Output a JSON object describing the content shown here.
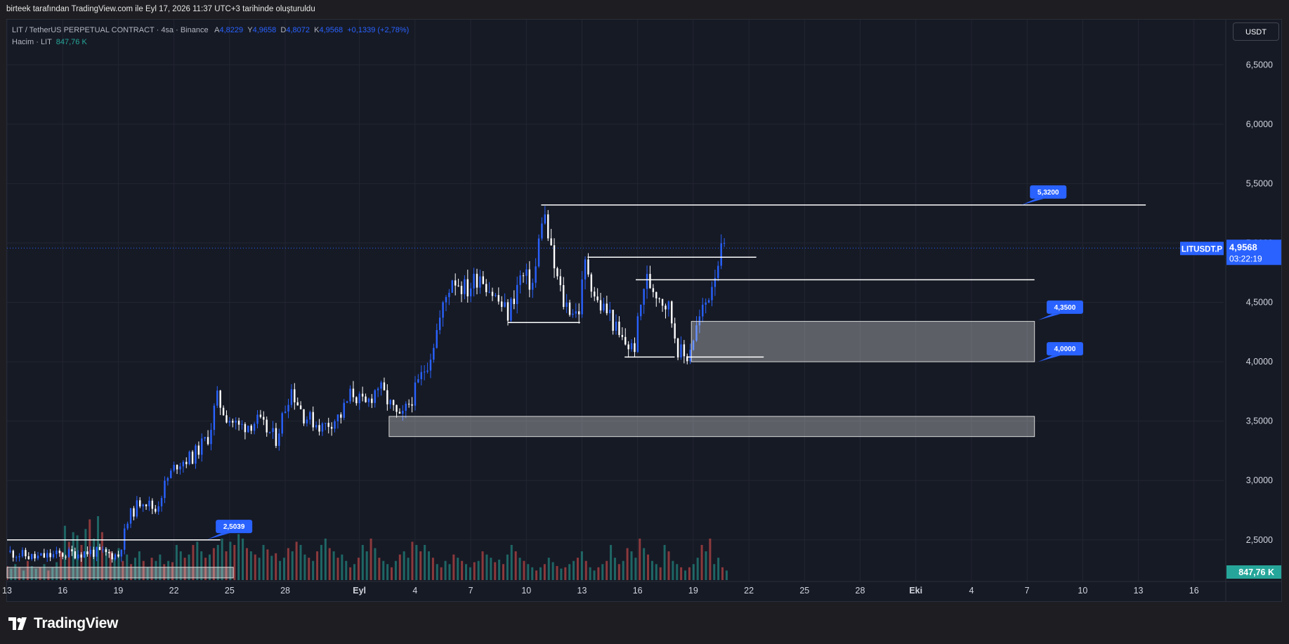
{
  "header": {
    "attribution": "birteek tarafından TradingView.com ile Eyl 17, 2026 11:37 UTC+3 tarihinde oluşturuldu"
  },
  "legend": {
    "symbol_line": "LIT / TetherUS PERPETUAL CONTRACT · 4sa · Binance",
    "open_label": "A",
    "open": "4,8229",
    "high_label": "Y",
    "high": "4,9658",
    "low_label": "D",
    "low": "4,8072",
    "close_label": "K",
    "close": "4,9568",
    "change": "+0,1339 (+2,78%)",
    "volume_label": "Hacim · LIT",
    "volume_value": "847,76 K"
  },
  "currency_button": "USDT",
  "price_tag": {
    "symbol": "LITUSDT.P",
    "price": "4,9568",
    "countdown": "03:22:19"
  },
  "volume_tag": "847,76 K",
  "branding": "TradingView",
  "colors": {
    "up": "#2962ff",
    "down": "#ffffff",
    "vol_up": "#26a69a",
    "vol_down": "#ef5350",
    "label_blue": "#2962ff",
    "background": "#161a25"
  },
  "chart_data": {
    "type": "candlestick",
    "title": "LIT / TetherUS PERPETUAL CONTRACT · 4sa · Binance",
    "y_axis": {
      "ticks": [
        "6,5000",
        "6,0000",
        "5,5000",
        "5,0000",
        "4,5000",
        "4,0000",
        "3,5000",
        "3,0000",
        "2,5000"
      ],
      "tick_values": [
        6.5,
        6.0,
        5.5,
        5.0,
        4.5,
        4.0,
        3.5,
        3.0,
        2.5
      ],
      "range": [
        2.15,
        6.88
      ]
    },
    "x_axis": {
      "ticks": [
        "13",
        "16",
        "19",
        "22",
        "25",
        "28",
        "Eyl",
        "4",
        "7",
        "10",
        "13",
        "16",
        "19",
        "22",
        "25",
        "28",
        "Eki",
        "4",
        "7",
        "10",
        "13",
        "16"
      ],
      "tick_days": [
        13,
        16,
        19,
        22,
        25,
        28,
        32,
        35,
        38,
        41,
        44,
        47,
        50,
        53,
        56,
        59,
        62,
        65,
        68,
        71,
        74,
        77
      ],
      "range_days": [
        13,
        78.6
      ]
    },
    "price_path": [
      [
        13.0,
        2.4
      ],
      [
        14.5,
        2.35
      ],
      [
        16.0,
        2.38
      ],
      [
        17.5,
        2.4
      ],
      [
        19.0,
        2.37
      ],
      [
        19.6,
        2.7
      ],
      [
        20.3,
        2.85
      ],
      [
        21.0,
        2.75
      ],
      [
        21.6,
        3.0
      ],
      [
        22.2,
        3.15
      ],
      [
        23.0,
        3.2
      ],
      [
        23.9,
        3.38
      ],
      [
        24.3,
        3.7
      ],
      [
        24.8,
        3.55
      ],
      [
        25.5,
        3.45
      ],
      [
        26.5,
        3.5
      ],
      [
        27.5,
        3.35
      ],
      [
        28.3,
        3.78
      ],
      [
        29.0,
        3.55
      ],
      [
        30.0,
        3.45
      ],
      [
        31.0,
        3.55
      ],
      [
        31.6,
        3.75
      ],
      [
        32.3,
        3.62
      ],
      [
        33.0,
        3.8
      ],
      [
        33.6,
        3.65
      ],
      [
        34.2,
        3.5
      ],
      [
        35.0,
        3.75
      ],
      [
        35.8,
        4.05
      ],
      [
        36.5,
        4.45
      ],
      [
        37.0,
        4.72
      ],
      [
        37.8,
        4.6
      ],
      [
        38.5,
        4.75
      ],
      [
        39.3,
        4.55
      ],
      [
        40.0,
        4.4
      ],
      [
        40.7,
        4.72
      ],
      [
        41.4,
        4.65
      ],
      [
        41.9,
        5.3
      ],
      [
        42.4,
        4.85
      ],
      [
        43.0,
        4.5
      ],
      [
        43.8,
        4.4
      ],
      [
        44.2,
        4.85
      ],
      [
        44.8,
        4.5
      ],
      [
        45.5,
        4.4
      ],
      [
        46.0,
        4.2
      ],
      [
        46.8,
        4.1
      ],
      [
        47.4,
        4.7
      ],
      [
        48.0,
        4.6
      ],
      [
        48.7,
        4.45
      ],
      [
        49.2,
        4.1
      ],
      [
        49.6,
        4.02
      ],
      [
        50.2,
        4.3
      ],
      [
        50.8,
        4.55
      ],
      [
        51.3,
        4.85
      ],
      [
        51.7,
        4.96
      ]
    ],
    "volume": {
      "values": [
        0.22,
        0.18,
        0.25,
        0.2,
        0.15,
        0.3,
        0.22,
        0.18,
        0.2,
        0.25,
        0.15,
        0.2,
        0.28,
        0.45,
        0.85,
        0.6,
        0.75,
        0.7,
        0.55,
        0.8,
        0.95,
        0.65,
        1.0,
        0.75,
        0.5,
        0.45,
        0.35,
        0.5,
        0.3,
        0.4,
        0.25,
        0.35,
        0.45,
        0.3,
        0.2,
        0.35,
        0.3,
        0.4,
        0.25,
        0.3,
        0.28,
        0.55,
        0.45,
        0.35,
        0.4,
        0.55,
        0.6,
        0.45,
        0.35,
        0.4,
        0.5,
        0.55,
        0.65,
        0.45,
        0.6,
        0.55,
        0.72,
        0.65,
        0.5,
        0.45,
        0.4,
        0.35,
        0.55,
        0.48,
        0.38,
        0.42,
        0.3,
        0.35,
        0.5,
        0.45,
        0.6,
        0.55,
        0.4,
        0.35,
        0.3,
        0.45,
        0.55,
        0.65,
        0.5,
        0.45,
        0.35,
        0.4,
        0.3,
        0.2,
        0.25,
        0.35,
        0.55,
        0.45,
        0.65,
        0.5,
        0.35,
        0.3,
        0.25,
        0.2,
        0.3,
        0.4,
        0.45,
        0.35,
        0.6,
        0.55,
        0.45,
        0.55,
        0.45,
        0.35,
        0.25,
        0.2,
        0.3,
        0.25,
        0.4,
        0.35,
        0.3,
        0.25,
        0.2,
        0.28,
        0.3,
        0.45,
        0.4,
        0.35,
        0.28,
        0.32,
        0.25,
        0.4,
        0.55,
        0.45,
        0.35,
        0.3,
        0.25,
        0.2,
        0.15,
        0.2,
        0.25,
        0.35,
        0.28,
        0.22,
        0.18,
        0.2,
        0.25,
        0.3,
        0.35,
        0.45,
        0.3,
        0.2,
        0.15,
        0.2,
        0.25,
        0.3,
        0.55,
        0.35,
        0.25,
        0.3,
        0.5,
        0.45,
        0.35,
        0.65,
        0.5,
        0.4,
        0.3,
        0.25,
        0.2,
        0.55,
        0.45,
        0.3,
        0.25,
        0.2,
        0.15,
        0.2,
        0.25,
        0.35,
        0.55,
        0.45,
        0.65,
        0.25,
        0.35,
        0.2,
        0.15
      ],
      "max_label": "847,76 K"
    },
    "horizontal_lines": [
      {
        "y": 5.32,
        "from_day": 41.8,
        "to_day": 74.4
      },
      {
        "y": 4.88,
        "from_day": 44.3,
        "to_day": 53.4
      },
      {
        "y": 4.69,
        "from_day": 46.9,
        "to_day": 68.4
      },
      {
        "y": 4.33,
        "from_day": 40.0,
        "to_day": 43.9
      },
      {
        "y": 4.04,
        "from_day": 46.3,
        "to_day": 49.0
      },
      {
        "y": 4.04,
        "from_day": 49.7,
        "to_day": 53.8
      },
      {
        "y": 2.5,
        "from_day": 13.0,
        "to_day": 24.5
      }
    ],
    "zones": [
      {
        "y_top": 4.34,
        "y_bottom": 4.0,
        "from_day": 49.9,
        "to_day": 68.4
      },
      {
        "y_top": 3.54,
        "y_bottom": 3.37,
        "from_day": 33.6,
        "to_day": 68.4
      },
      {
        "y_top": 2.27,
        "y_bottom": 2.18,
        "from_day": 13.0,
        "to_day": 25.2
      }
    ],
    "price_labels": [
      {
        "text": "5,3200",
        "value": 5.32,
        "day": 67.7
      },
      {
        "text": "4,3500",
        "value": 4.35,
        "day": 68.6
      },
      {
        "text": "4,0000",
        "value": 4.0,
        "day": 68.6
      },
      {
        "text": "2,5039",
        "value": 2.5039,
        "day": 23.8
      }
    ],
    "last_price": 4.9568
  }
}
